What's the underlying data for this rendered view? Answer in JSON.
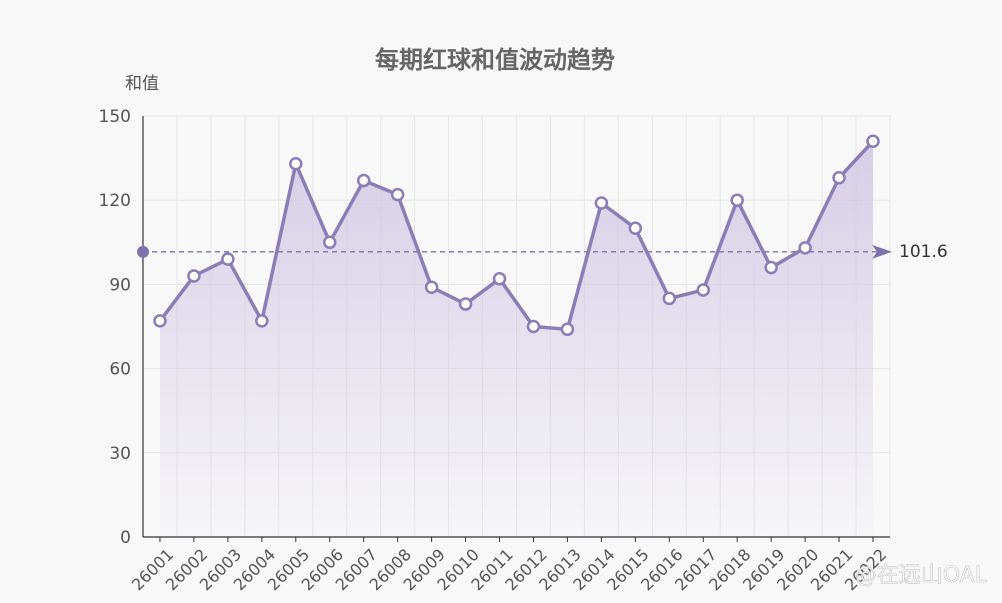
{
  "chart_data": {
    "type": "line",
    "title": "每期红球和值波动趋势",
    "ylabel": "和值",
    "xlabel": "",
    "categories": [
      "26001",
      "26002",
      "26003",
      "26004",
      "26005",
      "26006",
      "26007",
      "26008",
      "26009",
      "26010",
      "26011",
      "26012",
      "26013",
      "26014",
      "26015",
      "26016",
      "26017",
      "26018",
      "26019",
      "26020",
      "26021",
      "26022"
    ],
    "series": [
      {
        "values": [
          77,
          93,
          99,
          77,
          133,
          105,
          127,
          122,
          89,
          83,
          92,
          75,
          74,
          119,
          110,
          85,
          88,
          120,
          96,
          103,
          128,
          141
        ]
      }
    ],
    "ylim": [
      0,
      150
    ],
    "yticks": [
      0,
      30,
      60,
      90,
      120,
      150
    ],
    "average": {
      "value": 101.6,
      "label": "101.6"
    },
    "grid": true,
    "legend": "none",
    "colors": {
      "line": "#8b7db5",
      "area": "#cfc6e3",
      "avg": "#7f72ad",
      "grid": "#e6e6e6",
      "axis": "#333333"
    }
  },
  "watermark": "@在远山OAL"
}
